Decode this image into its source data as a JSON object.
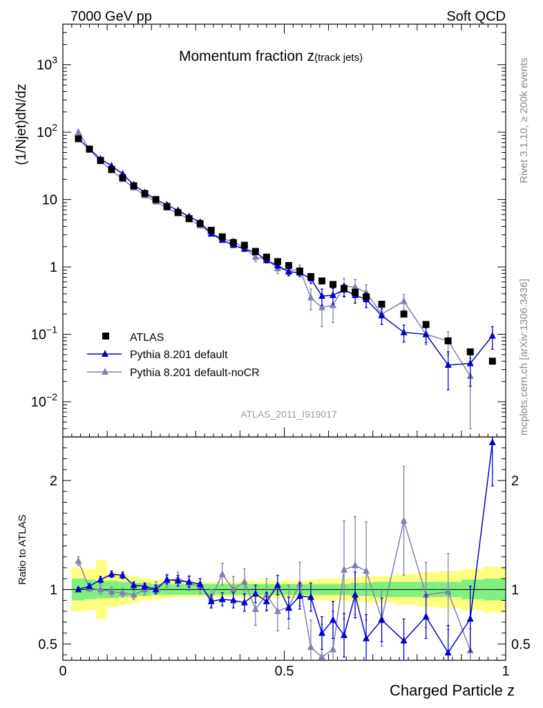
{
  "header": {
    "left": "7000 GeV pp",
    "right": "Soft QCD"
  },
  "side_labels": {
    "rivet": "Rivet 3.1.10, ≥ 200k events",
    "mcplots": "mcplots.cern.ch [arXiv:1306.3436]"
  },
  "watermark": "ATLAS_2011_I919017",
  "colors": {
    "data": "#000000",
    "default": "#0000cc",
    "nocr": "#7f7fb2",
    "band_inner": "#7fef7f",
    "band_outer": "#ffff7f"
  },
  "chart_data": [
    {
      "type": "scatter",
      "panel": "main",
      "title": "Momentum fraction z(track jets)",
      "title_main": "Momentum fraction z",
      "title_sub": "(track jets)",
      "ylabel": "(1/Njet)dN/dz",
      "y_scale": "log",
      "xlim": [
        0,
        1
      ],
      "ylim": [
        0.003,
        4000
      ],
      "y_ticks": [
        {
          "value": 0.01,
          "base": "10",
          "exp": "−2"
        },
        {
          "value": 0.1,
          "base": "10",
          "exp": "−1"
        },
        {
          "value": 1,
          "base": "1",
          "exp": ""
        },
        {
          "value": 10,
          "base": "10",
          "exp": ""
        },
        {
          "value": 100,
          "base": "10",
          "exp": "2"
        },
        {
          "value": 1000,
          "base": "10",
          "exp": "3"
        }
      ],
      "legend_position": "bottom-left",
      "x": [
        0.035,
        0.06,
        0.085,
        0.11,
        0.135,
        0.16,
        0.185,
        0.21,
        0.235,
        0.26,
        0.285,
        0.31,
        0.335,
        0.36,
        0.385,
        0.41,
        0.435,
        0.46,
        0.485,
        0.51,
        0.535,
        0.56,
        0.585,
        0.61,
        0.635,
        0.66,
        0.685,
        0.72,
        0.77,
        0.82,
        0.87,
        0.92,
        0.97
      ],
      "series": [
        {
          "name": "ATLAS",
          "marker": "square",
          "values": [
            80,
            56,
            38,
            28,
            21,
            16,
            12.3,
            10,
            7.9,
            6.4,
            5.2,
            4.4,
            3.5,
            2.8,
            2.3,
            2.1,
            1.7,
            1.4,
            1.2,
            1.05,
            0.87,
            0.72,
            0.62,
            0.55,
            0.48,
            0.42,
            0.36,
            0.28,
            0.2,
            0.14,
            0.08,
            0.055,
            0.04
          ]
        },
        {
          "name": "Pythia 8.201 default",
          "marker": "triangle",
          "values": [
            80,
            56,
            40,
            31.5,
            24,
            16.5,
            12.7,
            10,
            8.3,
            6.9,
            5.6,
            4.6,
            3.1,
            2.5,
            2.1,
            1.85,
            1.65,
            1.25,
            1.05,
            0.85,
            0.82,
            0.67,
            0.37,
            0.38,
            0.46,
            0.38,
            0.33,
            0.19,
            0.107,
            0.1,
            0.035,
            0.037,
            0.095
          ],
          "err": [
            2,
            1.5,
            1.2,
            1,
            0.8,
            0.6,
            0.5,
            0.4,
            0.35,
            0.3,
            0.25,
            0.2,
            0.2,
            0.15,
            0.15,
            0.15,
            0.12,
            0.1,
            0.1,
            0.1,
            0.1,
            0.1,
            0.1,
            0.1,
            0.1,
            0.09,
            0.08,
            0.05,
            0.03,
            0.025,
            0.02,
            0.02,
            0.035
          ]
        },
        {
          "name": "Pythia 8.201 default-noCR",
          "marker": "triangle",
          "values": [
            100,
            56,
            37,
            27,
            20,
            15,
            11.5,
            9.3,
            7.5,
            6.3,
            5.1,
            4.1,
            3.2,
            2.6,
            2.4,
            1.9,
            1.4,
            1.3,
            0.95,
            0.88,
            0.92,
            0.35,
            0.25,
            0.27,
            0.52,
            0.5,
            0.42,
            0.2,
            0.31,
            0.1,
            0.08,
            0.024
          ],
          "err": [
            3,
            1.5,
            1.2,
            1,
            0.8,
            0.6,
            0.5,
            0.4,
            0.35,
            0.3,
            0.25,
            0.2,
            0.2,
            0.2,
            0.2,
            0.2,
            0.2,
            0.15,
            0.15,
            0.15,
            0.15,
            0.12,
            0.12,
            0.12,
            0.15,
            0.15,
            0.12,
            0.06,
            0.08,
            0.03,
            0.03,
            0.02
          ]
        }
      ]
    },
    {
      "type": "scatter",
      "panel": "ratio",
      "ylabel": "Ratio to ATLAS",
      "xlabel": "Charged Particle z",
      "xlim": [
        0,
        1
      ],
      "ylim": [
        0.35,
        2.4
      ],
      "y_ticks": [
        {
          "value": 0.5,
          "label": "0.5"
        },
        {
          "value": 1,
          "label": "1"
        },
        {
          "value": 2,
          "label": "2"
        }
      ],
      "x_ticks": [
        {
          "value": 0,
          "label": "0"
        },
        {
          "value": 0.5,
          "label": "0.5"
        },
        {
          "value": 1,
          "label": "1"
        }
      ],
      "x": [
        0.035,
        0.06,
        0.085,
        0.11,
        0.135,
        0.16,
        0.185,
        0.21,
        0.235,
        0.26,
        0.285,
        0.31,
        0.335,
        0.36,
        0.385,
        0.41,
        0.435,
        0.46,
        0.485,
        0.51,
        0.535,
        0.56,
        0.585,
        0.61,
        0.635,
        0.66,
        0.685,
        0.72,
        0.77,
        0.82,
        0.87,
        0.92,
        0.97
      ],
      "bin_edges": [
        0.02,
        0.05,
        0.075,
        0.1,
        0.125,
        0.15,
        0.175,
        0.2,
        0.225,
        0.25,
        0.275,
        0.3,
        0.325,
        0.35,
        0.375,
        0.4,
        0.425,
        0.45,
        0.475,
        0.5,
        0.525,
        0.55,
        0.575,
        0.6,
        0.625,
        0.65,
        0.675,
        0.7,
        0.75,
        0.8,
        0.85,
        0.9,
        0.95,
        1.0
      ],
      "band_inner_halfwidth": [
        0.1,
        0.09,
        0.08,
        0.08,
        0.07,
        0.06,
        0.06,
        0.05,
        0.05,
        0.05,
        0.05,
        0.05,
        0.05,
        0.05,
        0.05,
        0.05,
        0.05,
        0.05,
        0.05,
        0.05,
        0.05,
        0.05,
        0.05,
        0.05,
        0.05,
        0.06,
        0.06,
        0.07,
        0.07,
        0.07,
        0.07,
        0.09,
        0.1
      ],
      "band_outer_halfwidth": [
        0.2,
        0.19,
        0.27,
        0.16,
        0.14,
        0.12,
        0.1,
        0.09,
        0.08,
        0.07,
        0.07,
        0.07,
        0.07,
        0.07,
        0.07,
        0.08,
        0.08,
        0.08,
        0.08,
        0.08,
        0.08,
        0.09,
        0.1,
        0.1,
        0.1,
        0.11,
        0.12,
        0.12,
        0.14,
        0.16,
        0.17,
        0.19,
        0.21
      ],
      "series": [
        {
          "name": "Pythia 8.201 default",
          "values": [
            1.0,
            1.03,
            1.09,
            1.14,
            1.13,
            1.04,
            1.03,
            1.0,
            1.09,
            1.08,
            1.07,
            1.05,
            0.89,
            0.91,
            0.9,
            0.88,
            0.96,
            0.89,
            1.04,
            0.83,
            0.94,
            0.93,
            0.6,
            0.72,
            0.58,
            0.95,
            0.55,
            0.72,
            0.53,
            0.75,
            0.42,
            0.73,
            2.35
          ],
          "err": [
            0.02,
            0.02,
            0.03,
            0.03,
            0.03,
            0.03,
            0.03,
            0.04,
            0.04,
            0.05,
            0.05,
            0.05,
            0.06,
            0.06,
            0.07,
            0.08,
            0.08,
            0.08,
            0.09,
            0.1,
            0.12,
            0.13,
            0.15,
            0.17,
            0.2,
            0.21,
            0.22,
            0.2,
            0.2,
            0.2,
            0.25,
            0.3,
            0.4
          ]
        },
        {
          "name": "Pythia 8.201 default-noCR",
          "values": [
            1.26,
            1.01,
            1.0,
            0.98,
            0.97,
            0.95,
            1.0,
            1.02,
            1.08,
            1.1,
            1.06,
            1.03,
            0.92,
            1.14,
            1.0,
            1.07,
            0.82,
            0.95,
            0.8,
            0.84,
            1.05,
            0.47,
            0.38,
            0.45,
            1.18,
            1.22,
            1.17,
            0.73,
            1.63,
            0.95,
            0.98,
            0.44
          ],
          "err": [
            0.04,
            0.03,
            0.04,
            0.04,
            0.04,
            0.04,
            0.05,
            0.05,
            0.06,
            0.06,
            0.07,
            0.07,
            0.08,
            0.1,
            0.12,
            0.12,
            0.15,
            0.15,
            0.18,
            0.2,
            0.2,
            0.25,
            0.3,
            0.35,
            0.45,
            0.45,
            0.45,
            0.25,
            0.5,
            0.3,
            0.35,
            0.2
          ]
        }
      ]
    }
  ]
}
